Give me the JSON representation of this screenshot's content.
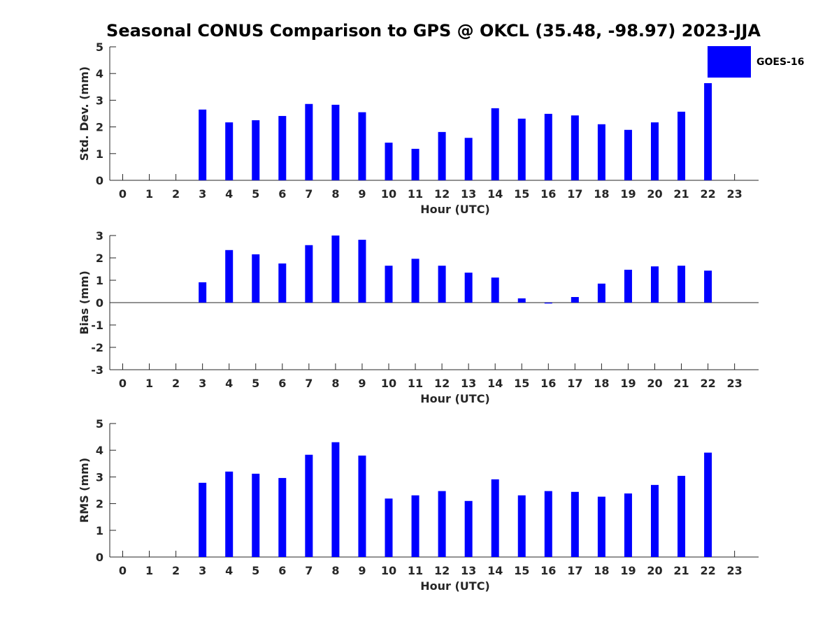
{
  "title": "Seasonal CONUS Comparison to GPS @ OKCL (35.48, -98.97) 2023-JJA",
  "colors": {
    "bar": "#0000ff",
    "axis": "#262626",
    "text": "#262626"
  },
  "legend": {
    "label": "GOES-16",
    "placement": "top-right"
  },
  "chart_data": [
    {
      "type": "bar",
      "xlabel": "Hour (UTC)",
      "ylabel": "Std. Dev. (mm)",
      "ylim": [
        0,
        5
      ],
      "yticks": [
        "0",
        "1",
        "2",
        "3",
        "4",
        "5"
      ],
      "categories": [
        "0",
        "1",
        "2",
        "3",
        "4",
        "5",
        "6",
        "7",
        "8",
        "9",
        "10",
        "11",
        "12",
        "13",
        "14",
        "15",
        "16",
        "17",
        "18",
        "19",
        "20",
        "21",
        "22",
        "23"
      ],
      "series": [
        {
          "name": "GOES-16",
          "values": [
            null,
            null,
            null,
            2.65,
            2.17,
            2.25,
            2.41,
            2.86,
            2.83,
            2.55,
            1.41,
            1.18,
            1.81,
            1.59,
            2.7,
            2.31,
            2.49,
            2.43,
            2.1,
            1.89,
            2.17,
            2.57,
            3.64,
            null
          ]
        }
      ]
    },
    {
      "type": "bar",
      "xlabel": "Hour (UTC)",
      "ylabel": "Bias (mm)",
      "ylim": [
        -3,
        3
      ],
      "yticks": [
        "-3",
        "-2",
        "-1",
        "0",
        "1",
        "2",
        "3"
      ],
      "categories": [
        "0",
        "1",
        "2",
        "3",
        "4",
        "5",
        "6",
        "7",
        "8",
        "9",
        "10",
        "11",
        "12",
        "13",
        "14",
        "15",
        "16",
        "17",
        "18",
        "19",
        "20",
        "21",
        "22",
        "23"
      ],
      "series": [
        {
          "name": "GOES-16",
          "values": [
            null,
            null,
            null,
            0.91,
            2.35,
            2.16,
            1.75,
            2.57,
            3.0,
            2.81,
            1.65,
            1.96,
            1.65,
            1.34,
            1.12,
            0.19,
            -0.04,
            0.25,
            0.85,
            1.47,
            1.62,
            1.65,
            1.43,
            null
          ]
        }
      ]
    },
    {
      "type": "bar",
      "xlabel": "Hour (UTC)",
      "ylabel": "RMS (mm)",
      "ylim": [
        0,
        5
      ],
      "yticks": [
        "0",
        "1",
        "2",
        "3",
        "4",
        "5"
      ],
      "categories": [
        "0",
        "1",
        "2",
        "3",
        "4",
        "5",
        "6",
        "7",
        "8",
        "9",
        "10",
        "11",
        "12",
        "13",
        "14",
        "15",
        "16",
        "17",
        "18",
        "19",
        "20",
        "21",
        "22",
        "23"
      ],
      "series": [
        {
          "name": "GOES-16",
          "values": [
            null,
            null,
            null,
            2.78,
            3.2,
            3.12,
            2.96,
            3.83,
            4.3,
            3.8,
            2.19,
            2.31,
            2.47,
            2.1,
            2.91,
            2.31,
            2.47,
            2.44,
            2.26,
            2.38,
            2.7,
            3.04,
            3.91,
            null
          ]
        }
      ]
    }
  ]
}
